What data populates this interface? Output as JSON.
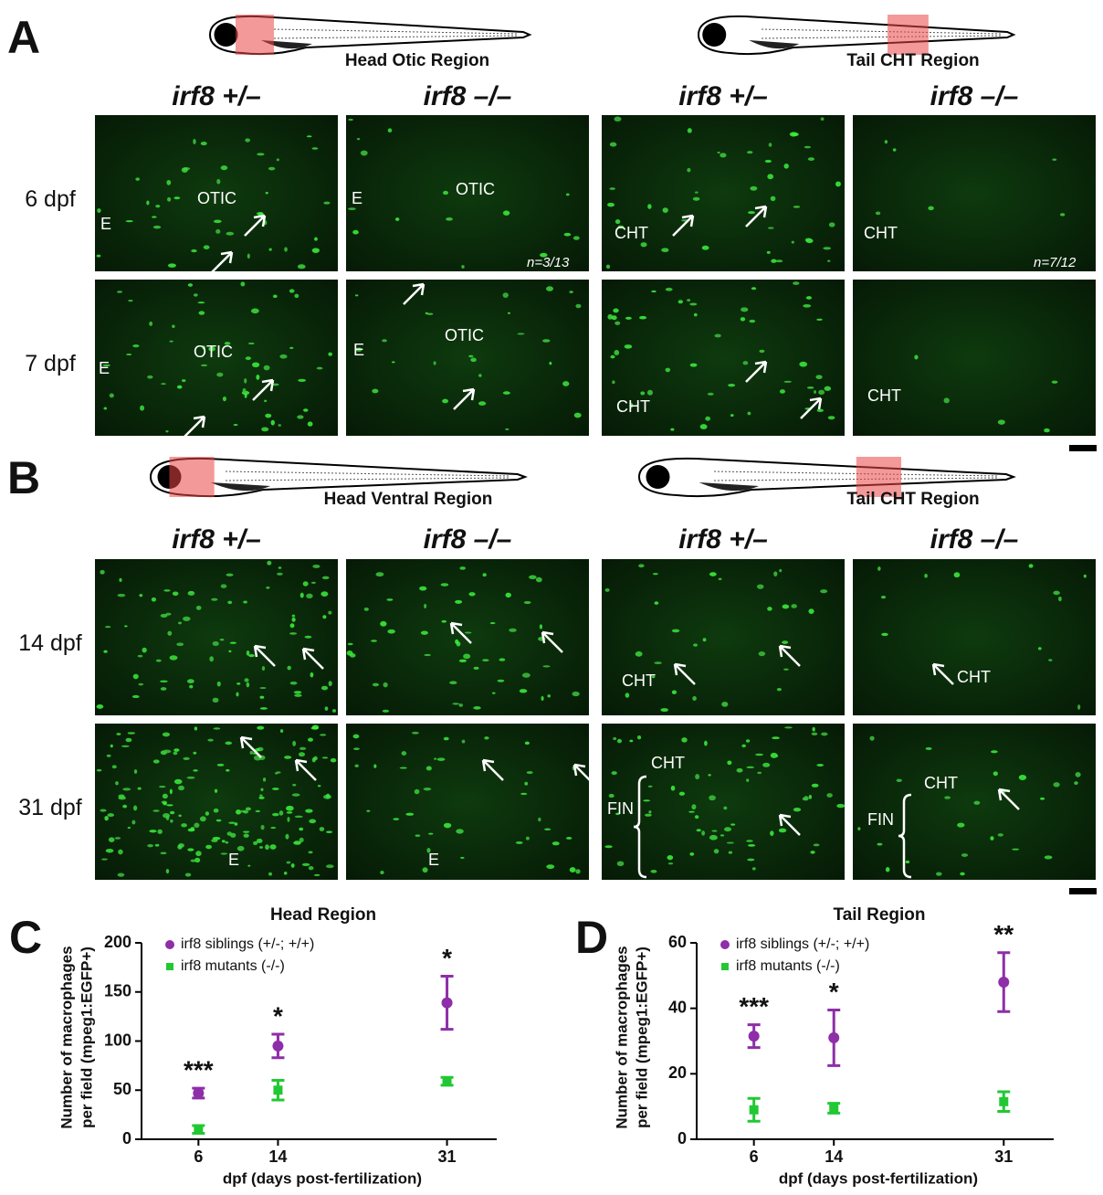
{
  "figure": {
    "panels": [
      {
        "letter": "A",
        "regions": [
          "Head Otic Region",
          "Tail CHT Region"
        ],
        "columns": [
          "irf8 +/–",
          "irf8 –/–",
          "irf8 +/–",
          "irf8 –/–"
        ],
        "rows": [
          {
            "label": "6 dpf",
            "cells": [
              [
                "E",
                "OTIC"
              ],
              [
                "E",
                "OTIC",
                "n=3/13"
              ],
              [
                "CHT"
              ],
              [
                "CHT",
                "n=7/12"
              ]
            ]
          },
          {
            "label": "7 dpf",
            "cells": [
              [
                "E",
                "OTIC"
              ],
              [
                "E",
                "OTIC"
              ],
              [
                "CHT"
              ],
              [
                "CHT"
              ]
            ]
          }
        ]
      },
      {
        "letter": "B",
        "regions": [
          "Head Ventral Region",
          "Tail CHT Region"
        ],
        "columns": [
          "irf8 +/–",
          "irf8 –/–",
          "irf8 +/–",
          "irf8 –/–"
        ],
        "rows": [
          {
            "label": "14 dpf",
            "cells": [
              [],
              [],
              [
                "CHT"
              ],
              [
                "CHT"
              ]
            ]
          },
          {
            "label": "31 dpf",
            "cells": [
              [
                "E"
              ],
              [
                "E"
              ],
              [
                "CHT",
                "FIN"
              ],
              [
                "CHT",
                "FIN"
              ]
            ]
          }
        ]
      }
    ]
  },
  "chart_data": [
    {
      "type": "scatter",
      "letter": "C",
      "title": "Head Region",
      "ylabel": [
        "Number of macrophages",
        "per field (mpeg1:EGFP+)"
      ],
      "xlabel": "dpf (days post-fertilization)",
      "x": [
        6,
        14,
        31
      ],
      "xlim": [
        0,
        36
      ],
      "xticks": [
        6,
        14,
        31
      ],
      "ylim": [
        0,
        200
      ],
      "yticks": [
        0,
        50,
        100,
        150,
        200
      ],
      "significance": [
        "***",
        "*",
        "*"
      ],
      "series": [
        {
          "name": "irf8 siblings (+/-; +/+)",
          "color": "#8e2ea8",
          "marker": "circle",
          "values": [
            47,
            95,
            139
          ],
          "errors": [
            5,
            12,
            27
          ]
        },
        {
          "name": "irf8 mutants (-/-)",
          "color": "#22c833",
          "marker": "square",
          "values": [
            10,
            50,
            59
          ],
          "errors": [
            4,
            10,
            4
          ]
        }
      ]
    },
    {
      "type": "scatter",
      "letter": "D",
      "title": "Tail Region",
      "ylabel": [
        "Number of macrophages",
        "per field (mpeg1:EGFP+)"
      ],
      "xlabel": "dpf (days post-fertilization)",
      "x": [
        6,
        14,
        31
      ],
      "xlim": [
        0,
        36
      ],
      "xticks": [
        6,
        14,
        31
      ],
      "ylim": [
        0,
        60
      ],
      "yticks": [
        0,
        20,
        40,
        60
      ],
      "significance": [
        "***",
        "*",
        "**"
      ],
      "series": [
        {
          "name": "irf8 siblings (+/-; +/+)",
          "color": "#8e2ea8",
          "marker": "circle",
          "values": [
            31.5,
            31,
            48
          ],
          "errors": [
            3.5,
            8.5,
            9
          ]
        },
        {
          "name": "irf8 mutants (-/-)",
          "color": "#22c833",
          "marker": "square",
          "values": [
            9,
            9.5,
            11.5
          ],
          "errors": [
            3.5,
            1.5,
            3
          ]
        }
      ]
    }
  ]
}
